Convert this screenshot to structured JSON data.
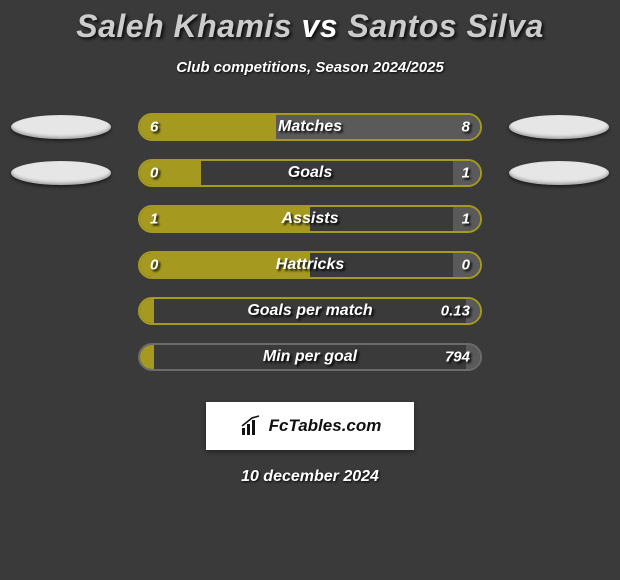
{
  "title": {
    "player1": "Saleh Khamis",
    "vs": "vs",
    "player2": "Santos Silva",
    "player1_color": "#cccccc",
    "player2_color": "#cccccc",
    "fontsize": 32
  },
  "subtitle": "Club competitions, Season 2024/2025",
  "date": "10 december 2024",
  "colors": {
    "background": "#3a3a3a",
    "left_fill": "#a59a1f",
    "right_fill": "#5a5a5a",
    "left_badge": "#e6e6e6",
    "right_badge": "#e6e6e6",
    "bar_border_default": "#a59a1f",
    "text": "#ffffff"
  },
  "logo": {
    "text": "FcTables.com"
  },
  "stats": [
    {
      "label": "Matches",
      "left_value": "6",
      "right_value": "8",
      "left_pct": 40,
      "right_pct": 60,
      "show_badges": true,
      "border_color": "#a59a1f"
    },
    {
      "label": "Goals",
      "left_value": "0",
      "right_value": "1",
      "left_pct": 18,
      "right_pct": 8,
      "show_badges": true,
      "border_color": "#a59a1f"
    },
    {
      "label": "Assists",
      "left_value": "1",
      "right_value": "1",
      "left_pct": 50,
      "right_pct": 8,
      "show_badges": false,
      "border_color": "#a59a1f"
    },
    {
      "label": "Hattricks",
      "left_value": "0",
      "right_value": "0",
      "left_pct": 50,
      "right_pct": 8,
      "show_badges": false,
      "border_color": "#a59a1f"
    },
    {
      "label": "Goals per match",
      "left_value": "",
      "right_value": "0.13",
      "left_pct": 4,
      "right_pct": 4,
      "show_badges": false,
      "border_color": "#a59a1f"
    },
    {
      "label": "Min per goal",
      "left_value": "",
      "right_value": "794",
      "left_pct": 4,
      "right_pct": 4,
      "show_badges": false,
      "border_color": "#6b6b6b"
    }
  ]
}
